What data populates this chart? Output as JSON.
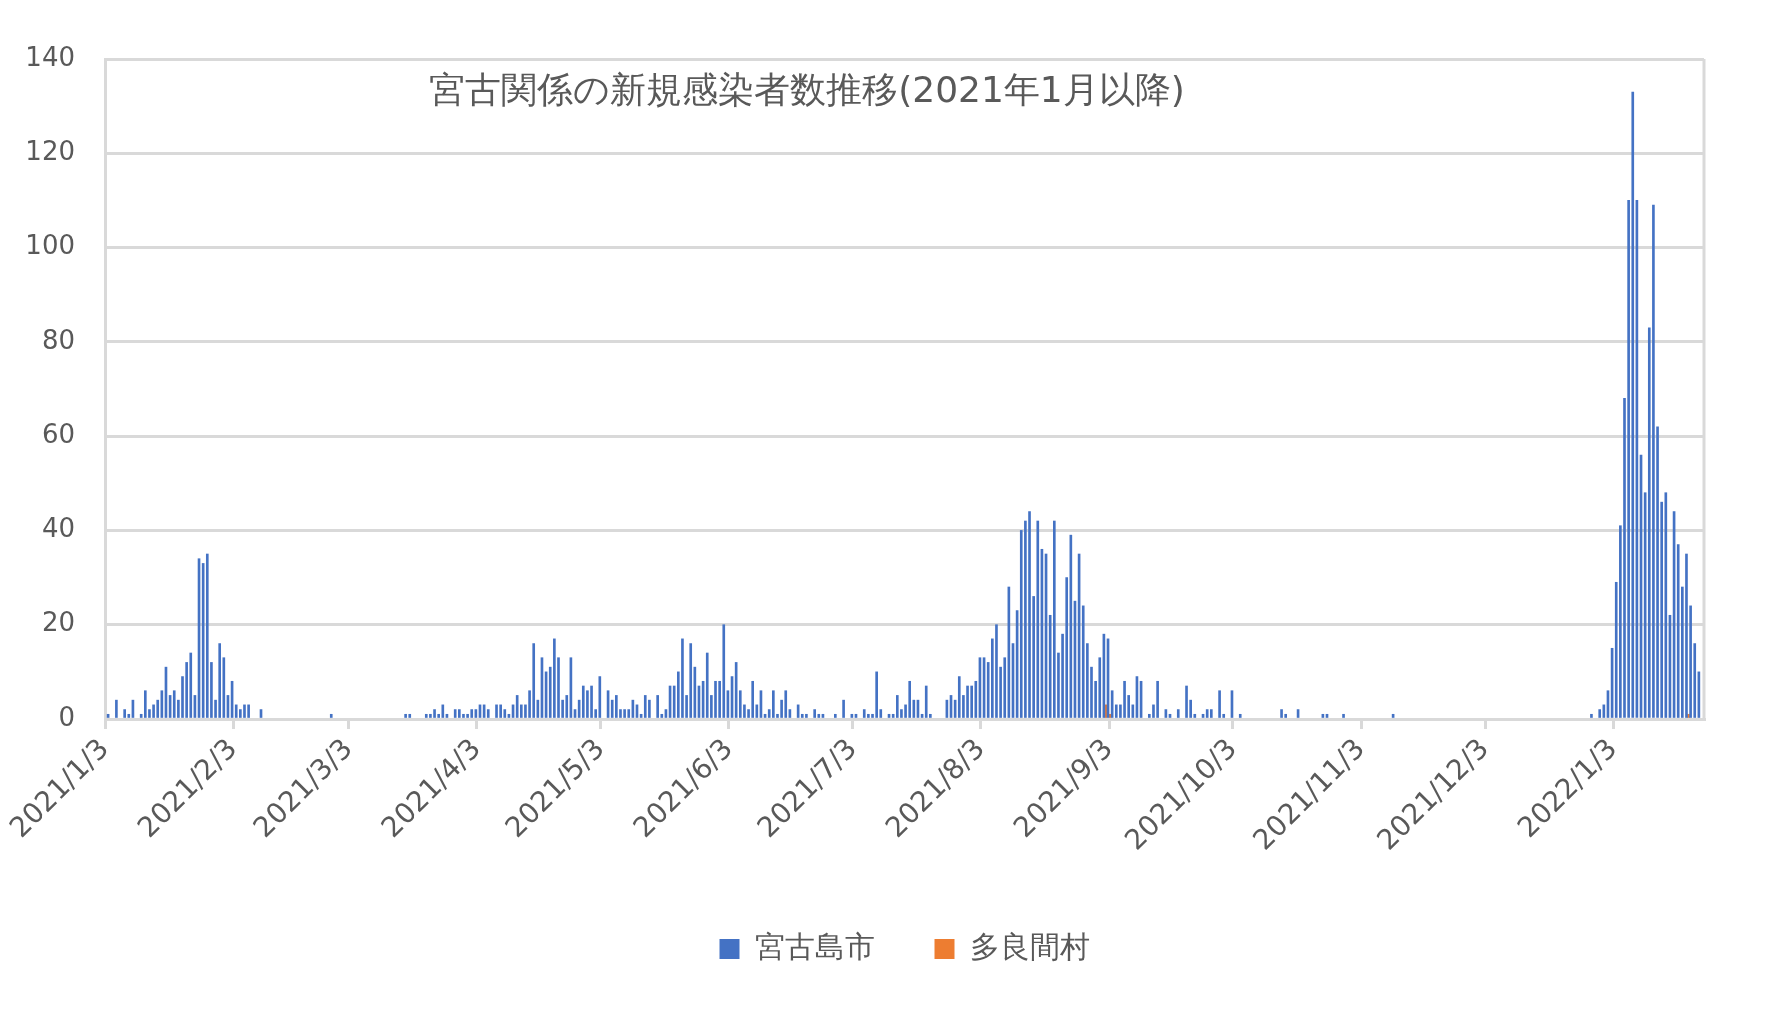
{
  "chart_data": {
    "type": "bar",
    "title": "宮古関係の新規感染者数推移(2021年1月以降)",
    "series": [
      {
        "name": "宮古島市",
        "color": "#4472c4",
        "x": [
          "2021-01-04",
          "2021-01-06",
          "2021-01-08",
          "2021-01-09",
          "2021-01-10",
          "2021-01-12",
          "2021-01-13",
          "2021-01-14",
          "2021-01-15",
          "2021-01-16",
          "2021-01-17",
          "2021-01-18",
          "2021-01-19",
          "2021-01-20",
          "2021-01-21",
          "2021-01-22",
          "2021-01-23",
          "2021-01-24",
          "2021-01-25",
          "2021-01-26",
          "2021-01-27",
          "2021-01-28",
          "2021-01-29",
          "2021-01-30",
          "2021-01-31",
          "2021-02-01",
          "2021-02-02",
          "2021-02-03",
          "2021-02-04",
          "2021-02-05",
          "2021-02-06",
          "2021-02-07",
          "2021-02-10",
          "2021-02-27",
          "2021-03-17",
          "2021-03-18",
          "2021-03-22",
          "2021-03-23",
          "2021-03-24",
          "2021-03-25",
          "2021-03-26",
          "2021-03-27",
          "2021-03-29",
          "2021-03-30",
          "2021-03-31",
          "2021-04-01",
          "2021-04-02",
          "2021-04-03",
          "2021-04-04",
          "2021-04-05",
          "2021-04-06",
          "2021-04-08",
          "2021-04-09",
          "2021-04-10",
          "2021-04-11",
          "2021-04-12",
          "2021-04-13",
          "2021-04-14",
          "2021-04-15",
          "2021-04-16",
          "2021-04-17",
          "2021-04-18",
          "2021-04-19",
          "2021-04-20",
          "2021-04-21",
          "2021-04-22",
          "2021-04-23",
          "2021-04-24",
          "2021-04-25",
          "2021-04-26",
          "2021-04-27",
          "2021-04-28",
          "2021-04-29",
          "2021-04-30",
          "2021-05-01",
          "2021-05-02",
          "2021-05-03",
          "2021-05-05",
          "2021-05-06",
          "2021-05-07",
          "2021-05-08",
          "2021-05-09",
          "2021-05-10",
          "2021-05-11",
          "2021-05-12",
          "2021-05-13",
          "2021-05-14",
          "2021-05-15",
          "2021-05-17",
          "2021-05-18",
          "2021-05-19",
          "2021-05-20",
          "2021-05-21",
          "2021-05-22",
          "2021-05-23",
          "2021-05-24",
          "2021-05-25",
          "2021-05-26",
          "2021-05-27",
          "2021-05-28",
          "2021-05-29",
          "2021-05-30",
          "2021-05-31",
          "2021-06-01",
          "2021-06-02",
          "2021-06-03",
          "2021-06-04",
          "2021-06-05",
          "2021-06-06",
          "2021-06-07",
          "2021-06-08",
          "2021-06-09",
          "2021-06-10",
          "2021-06-11",
          "2021-06-12",
          "2021-06-13",
          "2021-06-14",
          "2021-06-15",
          "2021-06-16",
          "2021-06-17",
          "2021-06-18",
          "2021-06-20",
          "2021-06-21",
          "2021-06-22",
          "2021-06-24",
          "2021-06-25",
          "2021-06-26",
          "2021-06-29",
          "2021-07-01",
          "2021-07-03",
          "2021-07-04",
          "2021-07-06",
          "2021-07-07",
          "2021-07-08",
          "2021-07-09",
          "2021-07-10",
          "2021-07-12",
          "2021-07-13",
          "2021-07-14",
          "2021-07-15",
          "2021-07-16",
          "2021-07-17",
          "2021-07-18",
          "2021-07-19",
          "2021-07-20",
          "2021-07-21",
          "2021-07-22",
          "2021-07-26",
          "2021-07-27",
          "2021-07-28",
          "2021-07-29",
          "2021-07-30",
          "2021-07-31",
          "2021-08-01",
          "2021-08-02",
          "2021-08-03",
          "2021-08-04",
          "2021-08-05",
          "2021-08-06",
          "2021-08-07",
          "2021-08-08",
          "2021-08-09",
          "2021-08-10",
          "2021-08-11",
          "2021-08-12",
          "2021-08-13",
          "2021-08-14",
          "2021-08-15",
          "2021-08-16",
          "2021-08-17",
          "2021-08-18",
          "2021-08-19",
          "2021-08-20",
          "2021-08-21",
          "2021-08-22",
          "2021-08-23",
          "2021-08-24",
          "2021-08-25",
          "2021-08-26",
          "2021-08-27",
          "2021-08-28",
          "2021-08-29",
          "2021-08-30",
          "2021-08-31",
          "2021-09-01",
          "2021-09-02",
          "2021-09-03",
          "2021-09-04",
          "2021-09-05",
          "2021-09-06",
          "2021-09-07",
          "2021-09-08",
          "2021-09-09",
          "2021-09-10",
          "2021-09-11",
          "2021-09-13",
          "2021-09-14",
          "2021-09-15",
          "2021-09-17",
          "2021-09-18",
          "2021-09-20",
          "2021-09-22",
          "2021-09-23",
          "2021-09-24",
          "2021-09-26",
          "2021-09-27",
          "2021-09-28",
          "2021-09-30",
          "2021-10-01",
          "2021-10-03",
          "2021-10-05",
          "2021-10-15",
          "2021-10-16",
          "2021-10-19",
          "2021-10-25",
          "2021-10-26",
          "2021-10-30",
          "2021-11-11",
          "2021-12-29",
          "2021-12-31",
          "2022-01-01",
          "2022-01-02",
          "2022-01-03",
          "2022-01-04",
          "2022-01-05",
          "2022-01-06",
          "2022-01-07",
          "2022-01-08",
          "2022-01-09",
          "2022-01-10",
          "2022-01-11",
          "2022-01-12",
          "2022-01-13",
          "2022-01-14",
          "2022-01-15",
          "2022-01-16",
          "2022-01-17",
          "2022-01-18",
          "2022-01-19",
          "2022-01-20",
          "2022-01-21",
          "2022-01-22",
          "2022-01-23",
          "2022-01-24"
        ],
        "values": [
          1,
          4,
          2,
          1,
          4,
          1,
          6,
          2,
          3,
          4,
          6,
          11,
          5,
          6,
          4,
          9,
          12,
          14,
          5,
          34,
          33,
          35,
          12,
          4,
          16,
          13,
          5,
          8,
          3,
          2,
          3,
          3,
          2,
          1,
          1,
          1,
          1,
          1,
          2,
          1,
          3,
          1,
          2,
          2,
          1,
          1,
          2,
          2,
          3,
          3,
          2,
          3,
          3,
          2,
          1,
          3,
          5,
          3,
          3,
          6,
          16,
          4,
          13,
          10,
          11,
          17,
          13,
          4,
          5,
          13,
          2,
          4,
          7,
          6,
          7,
          2,
          9,
          6,
          4,
          5,
          2,
          2,
          2,
          4,
          3,
          1,
          5,
          4,
          5,
          1,
          2,
          7,
          7,
          10,
          17,
          5,
          16,
          11,
          7,
          8,
          14,
          5,
          8,
          8,
          20,
          6,
          9,
          12,
          6,
          3,
          2,
          8,
          3,
          6,
          1,
          2,
          6,
          1,
          4,
          6,
          2,
          3,
          1,
          1,
          2,
          1,
          1,
          1,
          4,
          1,
          1,
          2,
          1,
          1,
          10,
          2,
          1,
          1,
          5,
          2,
          3,
          8,
          4,
          4,
          1,
          7,
          1,
          4,
          5,
          4,
          9,
          5,
          7,
          7,
          8,
          13,
          13,
          12,
          17,
          20,
          11,
          13,
          28,
          16,
          23,
          40,
          42,
          44,
          26,
          42,
          36,
          35,
          22,
          42,
          14,
          18,
          30,
          39,
          25,
          35,
          24,
          16,
          11,
          8,
          13,
          18,
          17,
          6,
          3,
          3,
          8,
          5,
          3,
          9,
          8,
          1,
          3,
          8,
          2,
          1,
          2,
          7,
          4,
          1,
          1,
          2,
          2,
          6,
          1,
          6,
          1,
          2,
          1,
          2,
          1,
          1,
          1,
          1,
          1,
          2,
          3,
          6,
          15,
          29,
          41,
          68,
          110,
          133,
          110,
          56,
          48,
          83,
          109,
          62,
          46,
          48,
          22,
          44,
          37,
          28,
          35,
          24,
          16,
          10
        ]
      },
      {
        "name": "多良間村",
        "color": "#ed7d31",
        "x": [
          "2021-09-02",
          "2021-09-03",
          "2022-01-21"
        ],
        "values": [
          3,
          1,
          1
        ]
      }
    ],
    "xlim": [
      "2021-01-03",
      "2022-01-25"
    ],
    "xticks": [
      {
        "value": "2021-01-03",
        "label": "2021/1/3"
      },
      {
        "value": "2021-02-03",
        "label": "2021/2/3"
      },
      {
        "value": "2021-03-03",
        "label": "2021/3/3"
      },
      {
        "value": "2021-04-03",
        "label": "2021/4/3"
      },
      {
        "value": "2021-05-03",
        "label": "2021/5/3"
      },
      {
        "value": "2021-06-03",
        "label": "2021/6/3"
      },
      {
        "value": "2021-07-03",
        "label": "2021/7/3"
      },
      {
        "value": "2021-08-03",
        "label": "2021/8/3"
      },
      {
        "value": "2021-09-03",
        "label": "2021/9/3"
      },
      {
        "value": "2021-10-03",
        "label": "2021/10/3"
      },
      {
        "value": "2021-11-03",
        "label": "2021/11/3"
      },
      {
        "value": "2021-12-03",
        "label": "2021/12/3"
      },
      {
        "value": "2022-01-03",
        "label": "2022/1/3"
      }
    ],
    "ylim": [
      0,
      140
    ],
    "yticks": [
      0,
      20,
      40,
      60,
      80,
      100,
      120,
      140
    ],
    "grid": "y",
    "legend": "bottom"
  }
}
